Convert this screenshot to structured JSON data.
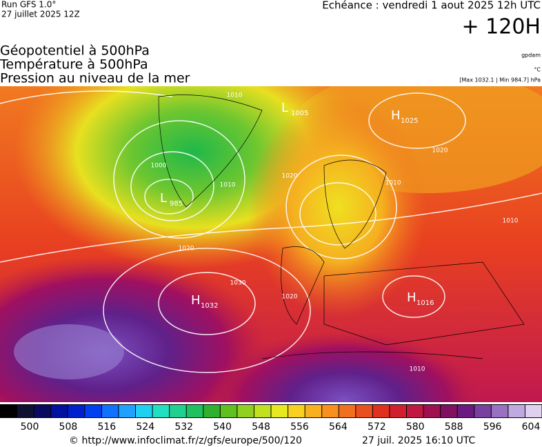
{
  "header": {
    "run": "Run GFS 1.0°",
    "run_date": "27 juillet 2025 12Z",
    "valid": "Echéance : vendredi 1 aout 2025 12h UTC",
    "lead": "+ 120H"
  },
  "titles": [
    "Géopotentiel à 500hPa",
    "Température à 500hPa",
    "Pression au niveau de la mer"
  ],
  "units": {
    "geopotential": "gpdam",
    "temperature": "°C",
    "pressure": "[Max 1032.1 | Min 984.7] hPa"
  },
  "centers": [
    {
      "letter": "L",
      "value": 1005
    },
    {
      "letter": "H",
      "value": 1025
    },
    {
      "letter": "L",
      "value": 985
    },
    {
      "letter": "H",
      "value": 1032
    },
    {
      "letter": "H",
      "value": 1016
    }
  ],
  "isobar_labels": [
    1010,
    1000,
    1010,
    1020,
    1020,
    1030,
    1020,
    1010,
    1020,
    1010,
    1010
  ],
  "colorbar_labels": [
    500,
    508,
    516,
    524,
    532,
    540,
    548,
    556,
    564,
    572,
    580,
    588,
    596,
    604
  ],
  "footer": {
    "url": "© http://www.infoclimat.fr/z/gfs/europe/500/120",
    "generated": "27 juil. 2025 16:10 UTC"
  }
}
